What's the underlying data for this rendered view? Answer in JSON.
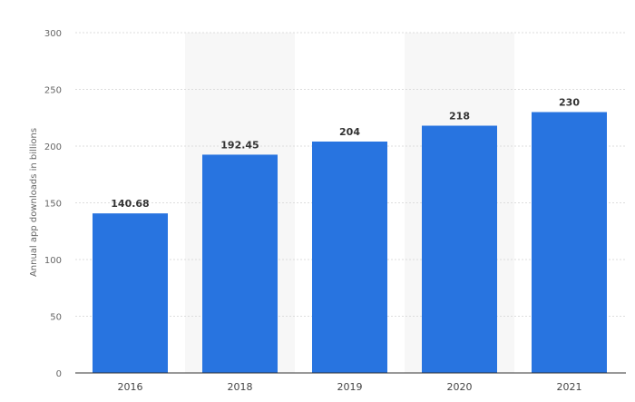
{
  "chart_data": {
    "type": "bar",
    "categories": [
      "2016",
      "2018",
      "2019",
      "2020",
      "2021"
    ],
    "values": [
      140.68,
      192.45,
      204,
      218,
      230
    ],
    "value_labels": [
      "140.68",
      "192.45",
      "204",
      "218",
      "230"
    ],
    "ylabel": "Annual app downloads in billions",
    "ylim": [
      0,
      300
    ],
    "yticks": [
      0,
      50,
      100,
      150,
      200,
      250,
      300
    ],
    "grid": true,
    "colors": {
      "bar": "#2874e0",
      "band": "#f7f7f7",
      "grid": "#dddddd",
      "axis": "#333333"
    }
  }
}
